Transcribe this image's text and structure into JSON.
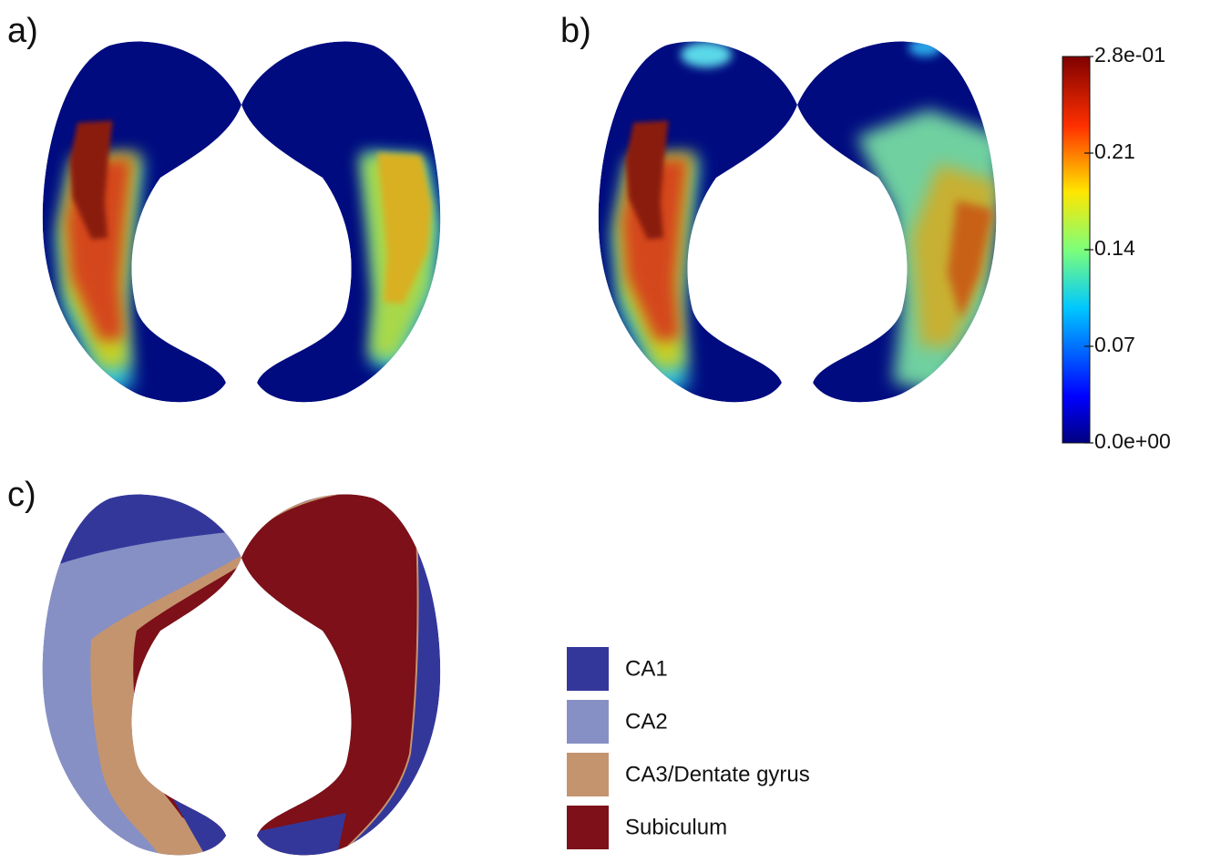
{
  "panels": [
    {
      "label": "a)"
    },
    {
      "label": "b)"
    },
    {
      "label": "c)"
    }
  ],
  "colorbar": {
    "lim": [
      0,
      0.28
    ],
    "ticks": [
      {
        "value": 0.28,
        "label": "2.8e-01"
      },
      0.21,
      0.14,
      0.07,
      {
        "value": 0,
        "label": "0.0e+00"
      }
    ]
  },
  "legend": [
    {
      "name": "CA1",
      "color": "#34379a"
    },
    {
      "name": "CA2",
      "color": "#8790c4"
    },
    {
      "name": "CA3/Dentate gyrus",
      "color": "#c4946f"
    },
    {
      "name": "Subiculum",
      "color": "#7d1018"
    }
  ]
}
